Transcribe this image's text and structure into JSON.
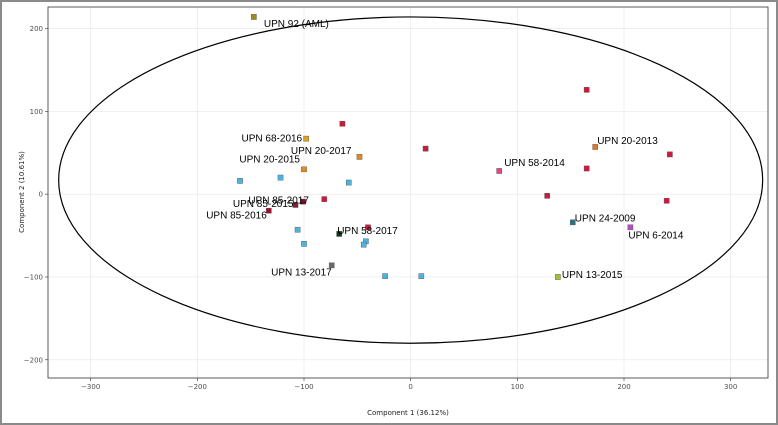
{
  "chart_data": {
    "type": "scatter",
    "xlabel": "Component 1 (36.12%)",
    "ylabel": "Component 2 (10.61%)",
    "xlim": [
      -340,
      335
    ],
    "ylim": [
      -222,
      226
    ],
    "xticks": [
      -300,
      -200,
      -100,
      0,
      100,
      200,
      300
    ],
    "yticks": [
      -200,
      -100,
      0,
      100,
      200
    ],
    "xtick_labels": [
      "−300",
      "−200",
      "−100",
      "0",
      "100",
      "200",
      "300"
    ],
    "ytick_labels": [
      "−200",
      "−100",
      "0",
      "100",
      "200"
    ],
    "grid": true,
    "ellipse": {
      "cx": 0,
      "cy": 17,
      "rx": 330,
      "ry": 197
    },
    "points": [
      {
        "x": -147,
        "y": 214,
        "color": "#a08a18",
        "label": "UPN  92 (AML)"
      },
      {
        "x": -98,
        "y": 67,
        "color": "#e0a020",
        "label": "UPN  68-2016"
      },
      {
        "x": -48,
        "y": 45,
        "color": "#e08a20",
        "label": "UPN  20-2017"
      },
      {
        "x": -100,
        "y": 30,
        "color": "#e08a20",
        "label": "UPN  20-2015"
      },
      {
        "x": -101,
        "y": -9,
        "color": "#7a1030",
        "label": "UPN  85-2017"
      },
      {
        "x": -108,
        "y": -13,
        "color": "#8b1a3a",
        "label": "UPN  85-2015"
      },
      {
        "x": -133,
        "y": -20,
        "color": "#a0102a",
        "label": "UPN  85-2016"
      },
      {
        "x": -67,
        "y": -48,
        "color": "#0a3a1a",
        "label": "UPN  58-2017"
      },
      {
        "x": -74,
        "y": -86,
        "color": "#6a6a6a",
        "label": "UPN  13-2017"
      },
      {
        "x": 83,
        "y": 28,
        "color": "#e04a7a",
        "label": "UPN  58-2014"
      },
      {
        "x": 173,
        "y": 57,
        "color": "#e07a20",
        "label": "UPN  20-2013"
      },
      {
        "x": 152,
        "y": -34,
        "color": "#2a7080",
        "label": "UPN  24-2009"
      },
      {
        "x": 206,
        "y": -40,
        "color": "#b050c0",
        "label": "UPN  6-2014"
      },
      {
        "x": 138,
        "y": -100,
        "color": "#a0c030",
        "label": "UPN  13-2015"
      },
      {
        "x": -64,
        "y": 85,
        "color": "#cc1a3a",
        "label": ""
      },
      {
        "x": 14,
        "y": 55,
        "color": "#cc1a3a",
        "label": ""
      },
      {
        "x": 165,
        "y": 126,
        "color": "#cc1a3a",
        "label": ""
      },
      {
        "x": 243,
        "y": 48,
        "color": "#cc1a3a",
        "label": ""
      },
      {
        "x": 165,
        "y": 31,
        "color": "#cc1a3a",
        "label": ""
      },
      {
        "x": 128,
        "y": -2,
        "color": "#cc1a3a",
        "label": ""
      },
      {
        "x": 240,
        "y": -8,
        "color": "#cc1a3a",
        "label": ""
      },
      {
        "x": -81,
        "y": -6,
        "color": "#cc1a3a",
        "label": ""
      },
      {
        "x": -40,
        "y": -40,
        "color": "#cc1a3a",
        "label": ""
      },
      {
        "x": -160,
        "y": 16,
        "color": "#4ab4e0",
        "label": ""
      },
      {
        "x": -122,
        "y": 20,
        "color": "#4ab4e0",
        "label": ""
      },
      {
        "x": -58,
        "y": 14,
        "color": "#4ab4e0",
        "label": ""
      },
      {
        "x": -106,
        "y": -43,
        "color": "#4ab4e0",
        "label": ""
      },
      {
        "x": -100,
        "y": -60,
        "color": "#4ab4e0",
        "label": ""
      },
      {
        "x": -42,
        "y": -57,
        "color": "#4ab4e0",
        "label": ""
      },
      {
        "x": -44,
        "y": -61,
        "color": "#4ab4e0",
        "label": ""
      },
      {
        "x": -24,
        "y": -99,
        "color": "#4ab4e0",
        "label": ""
      },
      {
        "x": 10,
        "y": -99,
        "color": "#4ab4e0",
        "label": ""
      }
    ]
  }
}
